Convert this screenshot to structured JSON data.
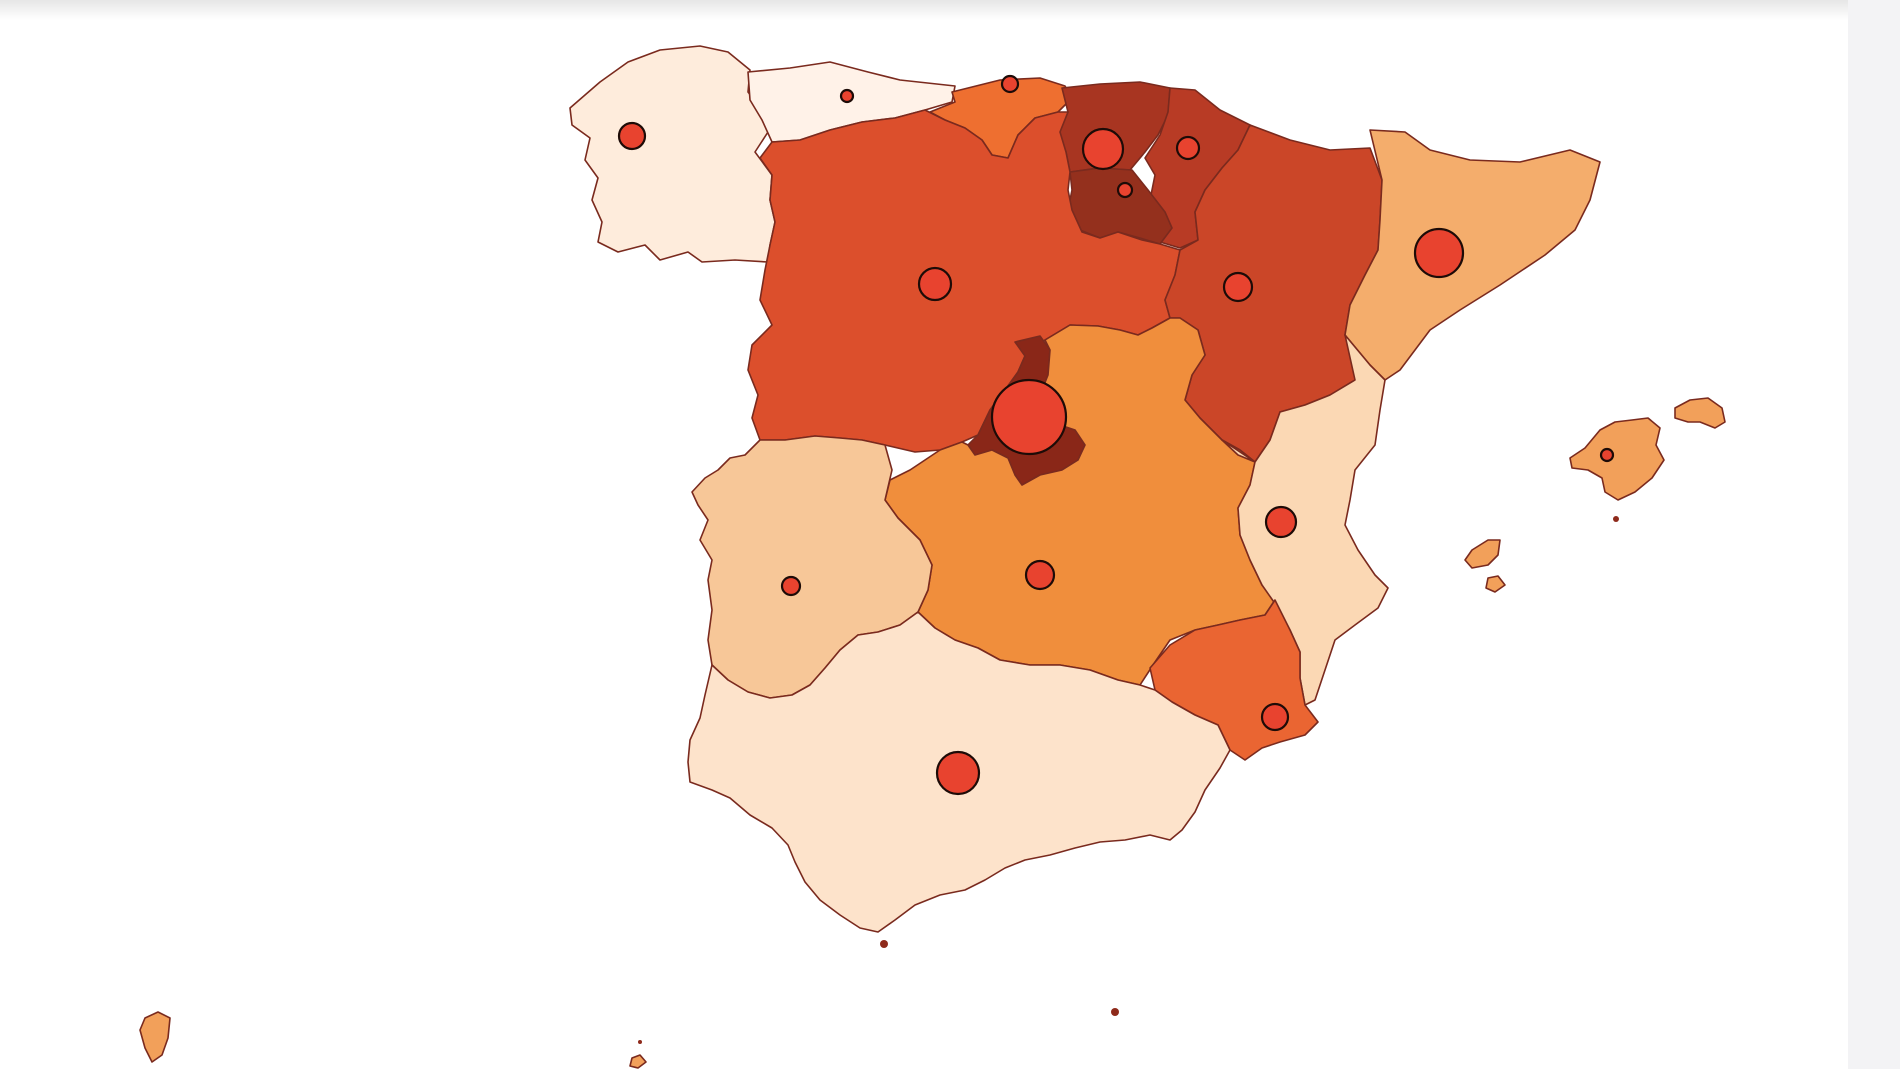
{
  "map": {
    "bubble_color": "#e8432f",
    "bubble_stroke": "#1d0b07",
    "border_color": "#7a2a1e",
    "regions": [
      {
        "id": "galicia",
        "fill": "#feecdc",
        "bubble": "small"
      },
      {
        "id": "asturias",
        "fill": "#fff2e8",
        "bubble": "tiny"
      },
      {
        "id": "cantabria",
        "fill": "#ee6f30",
        "bubble": "tiny"
      },
      {
        "id": "pais-vasco",
        "fill": "#a83521",
        "bubble": "medium"
      },
      {
        "id": "navarra",
        "fill": "#b83b25",
        "bubble": "small"
      },
      {
        "id": "la-rioja",
        "fill": "#94301d",
        "bubble": "tiny"
      },
      {
        "id": "castilla-y-leon",
        "fill": "#dc4f2c",
        "bubble": "medium"
      },
      {
        "id": "aragon",
        "fill": "#cb4628",
        "bubble": "small"
      },
      {
        "id": "cataluna",
        "fill": "#f4ad6c",
        "bubble": "large"
      },
      {
        "id": "madrid",
        "fill": "#8a2718",
        "bubble": "largest"
      },
      {
        "id": "castilla-la-mancha",
        "fill": "#f08e3c",
        "bubble": "small"
      },
      {
        "id": "extremadura",
        "fill": "#f7c798",
        "bubble": "small"
      },
      {
        "id": "comunidad-valenciana",
        "fill": "#fbd8b4",
        "bubble": "small"
      },
      {
        "id": "murcia",
        "fill": "#ea6532",
        "bubble": "small"
      },
      {
        "id": "andalucia",
        "fill": "#fde3cb",
        "bubble": "medium"
      },
      {
        "id": "islas-baleares",
        "fill": "#f2a05a",
        "bubble": "tiny"
      },
      {
        "id": "islas-canarias",
        "fill": "#f2a05a",
        "bubble": "none"
      }
    ]
  }
}
